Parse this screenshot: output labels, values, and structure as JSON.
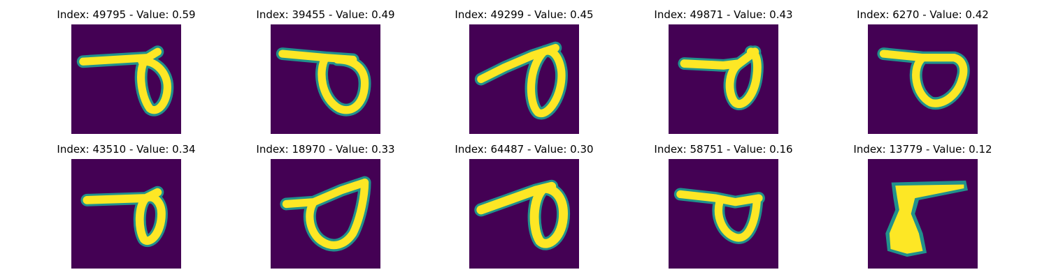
{
  "figure": {
    "panels": [
      {
        "title": "Index: 49795 - Value: 0.59",
        "image": "handwritten-digit-9-loop-wide"
      },
      {
        "title": "Index: 39455 - Value: 0.49",
        "image": "handwritten-digit-9-loop-round"
      },
      {
        "title": "Index: 49299 - Value: 0.45",
        "image": "handwritten-digit-9-slanted-oval"
      },
      {
        "title": "Index: 49871 - Value: 0.43",
        "image": "handwritten-digit-9-small-loop"
      },
      {
        "title": "Index: 6270 - Value: 0.42",
        "image": "handwritten-digit-9-flat-loop"
      },
      {
        "title": "Index: 43510 - Value: 0.34",
        "image": "handwritten-digit-9-narrow-loop"
      },
      {
        "title": "Index: 18970 - Value: 0.33",
        "image": "handwritten-digit-9-triangular-loop"
      },
      {
        "title": "Index: 64487 - Value: 0.30",
        "image": "handwritten-digit-9-long-tail"
      },
      {
        "title": "Index: 58751 - Value: 0.16",
        "image": "handwritten-digit-9-open-loop"
      },
      {
        "title": "Index: 13779 - Value: 0.12",
        "image": "handwritten-blob-filled"
      }
    ],
    "colormap": {
      "background": "#440154",
      "edge": "#21918c",
      "foreground": "#fde725"
    }
  }
}
